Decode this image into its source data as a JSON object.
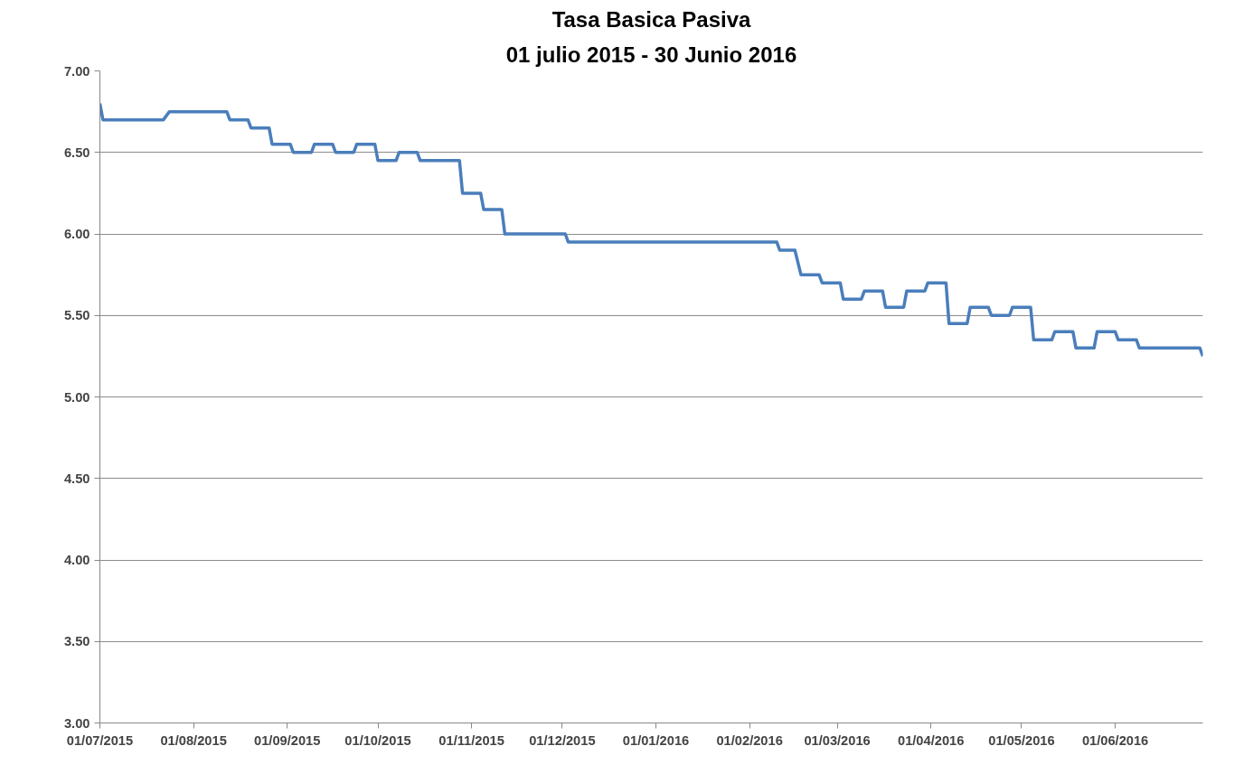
{
  "chart_data": {
    "type": "line",
    "title": "Tasa Basica Pasiva",
    "subtitle": "01 julio 2015 - 30 Junio 2016",
    "x": [
      "2015-07-01",
      "2015-07-02",
      "2015-07-22",
      "2015-07-24",
      "2015-08-12",
      "2015-08-13",
      "2015-08-19",
      "2015-08-20",
      "2015-08-26",
      "2015-08-27",
      "2015-09-02",
      "2015-09-03",
      "2015-09-09",
      "2015-09-10",
      "2015-09-16",
      "2015-09-17",
      "2015-09-23",
      "2015-09-24",
      "2015-09-30",
      "2015-10-01",
      "2015-10-07",
      "2015-10-08",
      "2015-10-14",
      "2015-10-15",
      "2015-10-28",
      "2015-10-29",
      "2015-11-04",
      "2015-11-05",
      "2015-11-11",
      "2015-11-12",
      "2015-12-02",
      "2015-12-03",
      "2016-02-10",
      "2016-02-11",
      "2016-02-16",
      "2016-02-18",
      "2016-02-24",
      "2016-02-25",
      "2016-03-02",
      "2016-03-03",
      "2016-03-09",
      "2016-03-10",
      "2016-03-16",
      "2016-03-17",
      "2016-03-23",
      "2016-03-24",
      "2016-03-30",
      "2016-03-31",
      "2016-04-06",
      "2016-04-07",
      "2016-04-13",
      "2016-04-14",
      "2016-04-20",
      "2016-04-21",
      "2016-04-27",
      "2016-04-28",
      "2016-05-04",
      "2016-05-05",
      "2016-05-11",
      "2016-05-12",
      "2016-05-18",
      "2016-05-19",
      "2016-05-25",
      "2016-05-26",
      "2016-06-01",
      "2016-06-02",
      "2016-06-08",
      "2016-06-09",
      "2016-06-29",
      "2016-06-30"
    ],
    "series": [
      {
        "color": "#4a7ebb",
        "values": [
          6.8,
          6.7,
          6.7,
          6.75,
          6.75,
          6.7,
          6.7,
          6.65,
          6.65,
          6.55,
          6.55,
          6.5,
          6.5,
          6.55,
          6.55,
          6.5,
          6.5,
          6.55,
          6.55,
          6.45,
          6.45,
          6.5,
          6.5,
          6.45,
          6.45,
          6.25,
          6.25,
          6.15,
          6.15,
          6.0,
          6.0,
          5.95,
          5.95,
          5.9,
          5.9,
          5.75,
          5.75,
          5.7,
          5.7,
          5.6,
          5.6,
          5.65,
          5.65,
          5.55,
          5.55,
          5.65,
          5.65,
          5.7,
          5.7,
          5.45,
          5.45,
          5.55,
          5.55,
          5.5,
          5.5,
          5.55,
          5.55,
          5.35,
          5.35,
          5.4,
          5.4,
          5.3,
          5.3,
          5.4,
          5.4,
          5.35,
          5.35,
          5.3,
          5.3,
          5.25
        ]
      }
    ],
    "xlim": [
      "2015-07-01",
      "2016-06-30"
    ],
    "xticks": [
      {
        "value": "2015-07-01",
        "label": "01/07/2015"
      },
      {
        "value": "2015-08-01",
        "label": "01/08/2015"
      },
      {
        "value": "2015-09-01",
        "label": "01/09/2015"
      },
      {
        "value": "2015-10-01",
        "label": "01/10/2015"
      },
      {
        "value": "2015-11-01",
        "label": "01/11/2015"
      },
      {
        "value": "2015-12-01",
        "label": "01/12/2015"
      },
      {
        "value": "2016-01-01",
        "label": "01/01/2016"
      },
      {
        "value": "2016-02-01",
        "label": "01/02/2016"
      },
      {
        "value": "2016-03-01",
        "label": "01/03/2016"
      },
      {
        "value": "2016-04-01",
        "label": "01/04/2016"
      },
      {
        "value": "2016-05-01",
        "label": "01/05/2016"
      },
      {
        "value": "2016-06-01",
        "label": "01/06/2016"
      }
    ],
    "ylim": [
      3,
      7
    ],
    "yticks": [
      {
        "value": 3,
        "label": "3.00"
      },
      {
        "value": 3.5,
        "label": "3.50"
      },
      {
        "value": 4,
        "label": "4.00"
      },
      {
        "value": 4.5,
        "label": "4.50"
      },
      {
        "value": 5,
        "label": "5.00"
      },
      {
        "value": 5.5,
        "label": "5.50"
      },
      {
        "value": 6,
        "label": "6.00"
      },
      {
        "value": 6.5,
        "label": "6.50"
      },
      {
        "value": 7,
        "label": "7.00"
      }
    ],
    "grid": "y",
    "marker": "none",
    "line_style": "solid"
  }
}
